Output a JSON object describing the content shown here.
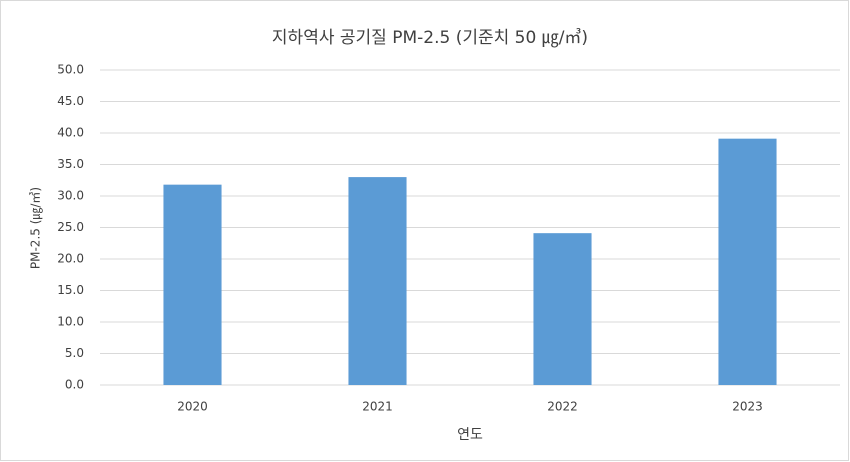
{
  "chart_data": {
    "type": "bar",
    "title": "지하역사 공기질 PM-2.5 (기준치 50 ㎍/㎥)",
    "x_label": "연도",
    "y_label": "PM-2.5 (㎍/㎥)",
    "categories": [
      "2020",
      "2021",
      "2022",
      "2023"
    ],
    "values": [
      31.8,
      33.0,
      24.1,
      39.1
    ],
    "color": "#5b9bd5",
    "ylim": [
      0,
      50
    ],
    "yticks": [
      {
        "value": 0,
        "label": "0.0"
      },
      {
        "value": 5,
        "label": "5.0"
      },
      {
        "value": 10,
        "label": "10.0"
      },
      {
        "value": 15,
        "label": "15.0"
      },
      {
        "value": 20,
        "label": "20.0"
      },
      {
        "value": 25,
        "label": "25.0"
      },
      {
        "value": 30,
        "label": "30.0"
      },
      {
        "value": 35,
        "label": "35.0"
      },
      {
        "value": 40,
        "label": "40.0"
      },
      {
        "value": 45,
        "label": "45.0"
      },
      {
        "value": 50,
        "label": "50.0"
      }
    ],
    "grid": true
  }
}
